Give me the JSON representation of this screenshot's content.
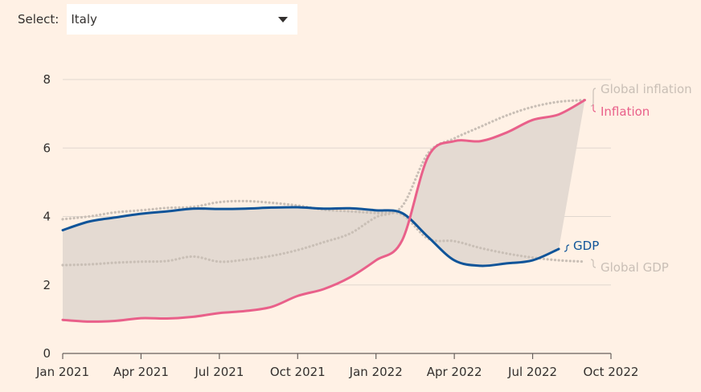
{
  "select": {
    "label": "Select:",
    "value": "Italy"
  },
  "colors": {
    "background": "#fff1e5",
    "inflation": "#e9608a",
    "gdp": "#0f5499",
    "global": "#c9bfb6",
    "band": "#e4dad2",
    "grid": "#e0d7cf",
    "axis": "#66605c"
  },
  "chart_data": {
    "type": "line",
    "title": "",
    "xlabel": "",
    "ylabel": "",
    "ylim": [
      0,
      8
    ],
    "yticks": [
      0,
      2,
      4,
      6,
      8
    ],
    "x_ticks": [
      "Jan 2021",
      "Apr 2021",
      "Jul 2021",
      "Oct 2021",
      "Jan 2022",
      "Apr 2022",
      "Jul 2022",
      "Oct 2022"
    ],
    "x": [
      "2021-01",
      "2021-02",
      "2021-03",
      "2021-04",
      "2021-05",
      "2021-06",
      "2021-07",
      "2021-08",
      "2021-09",
      "2021-10",
      "2021-11",
      "2021-12",
      "2022-01",
      "2022-02",
      "2022-03",
      "2022-04",
      "2022-05",
      "2022-06",
      "2022-07",
      "2022-08",
      "2022-09"
    ],
    "grid": true,
    "shaded_band_between": [
      "Inflation",
      "GDP"
    ],
    "series": [
      {
        "name": "Inflation",
        "color": "#e9608a",
        "style": "solid",
        "values": [
          0.98,
          0.93,
          0.95,
          1.03,
          1.02,
          1.07,
          1.18,
          1.24,
          1.36,
          1.68,
          1.88,
          2.22,
          2.72,
          3.3,
          5.75,
          6.2,
          6.2,
          6.45,
          6.82,
          6.98,
          7.4
        ]
      },
      {
        "name": "GDP",
        "color": "#0f5499",
        "style": "solid",
        "values": [
          3.6,
          3.85,
          3.97,
          4.08,
          4.15,
          4.23,
          4.22,
          4.23,
          4.26,
          4.27,
          4.23,
          4.24,
          4.18,
          4.1,
          3.4,
          2.72,
          2.56,
          2.63,
          2.72,
          3.05,
          null
        ]
      },
      {
        "name": "Global inflation",
        "color": "#c9bfb6",
        "style": "dotted",
        "values": [
          2.58,
          2.6,
          2.65,
          2.68,
          2.7,
          2.83,
          2.68,
          2.74,
          2.85,
          3.02,
          3.25,
          3.5,
          3.98,
          4.3,
          5.85,
          6.28,
          6.62,
          6.95,
          7.2,
          7.35,
          7.4
        ]
      },
      {
        "name": "Global GDP",
        "color": "#c9bfb6",
        "style": "dotted",
        "values": [
          3.92,
          4.0,
          4.12,
          4.18,
          4.25,
          4.28,
          4.42,
          4.45,
          4.4,
          4.32,
          4.2,
          4.15,
          4.1,
          4.05,
          3.35,
          3.28,
          3.08,
          2.92,
          2.8,
          2.72,
          2.68
        ]
      }
    ],
    "labels": {
      "global_inflation": "Global inflation",
      "inflation": "Inflation",
      "gdp": "GDP",
      "global_gdp": "Global GDP"
    }
  }
}
